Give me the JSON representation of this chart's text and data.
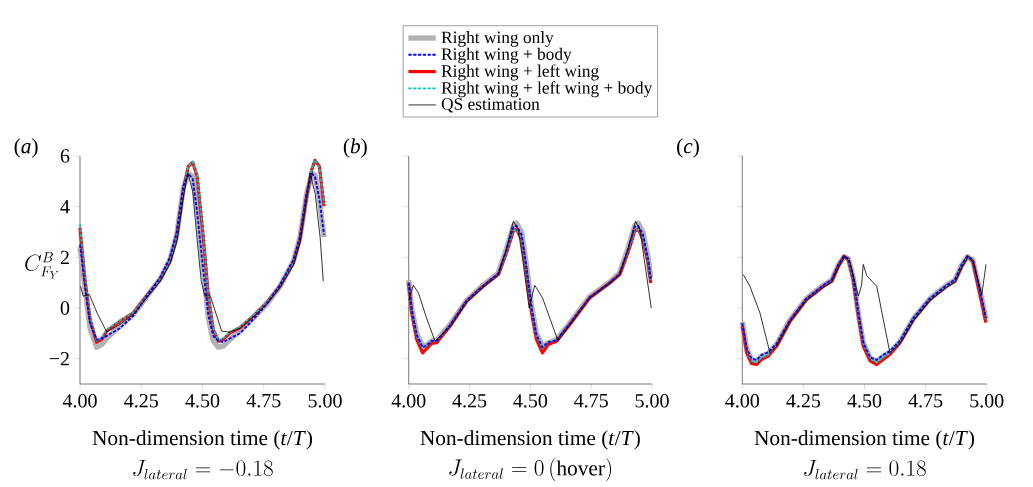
{
  "chart_data": [
    {
      "type": "line",
      "title": "(*a*)",
      "xlabel": "Non-dimension time (*t*/*T*)",
      "ylabel": "C^{B}_{F_Y}",
      "annotations": [
        "J_{lateral} = -0.18"
      ],
      "xlim": [
        4.0,
        5.0
      ],
      "ylim": [
        -3,
        6
      ],
      "xticks": [
        {
          "value": 4.0,
          "label": "4.00"
        },
        {
          "value": 4.25,
          "label": "4.25"
        },
        {
          "value": 4.5,
          "label": "4.50"
        },
        {
          "value": 4.75,
          "label": "4.75"
        },
        {
          "value": 5.0,
          "label": "5.00"
        }
      ],
      "yticks": [
        {
          "value": -2,
          "label": "−2"
        },
        0,
        2,
        4,
        6
      ],
      "x": [
        4.0,
        4.02,
        4.041,
        4.068,
        4.088,
        4.109,
        4.163,
        4.218,
        4.272,
        4.327,
        4.367,
        4.395,
        4.422,
        4.442,
        4.46,
        4.478,
        4.503,
        4.524,
        4.544,
        4.565,
        4.585,
        4.612,
        4.653,
        4.707,
        4.762,
        4.816,
        4.871,
        4.898,
        4.925,
        4.946,
        4.959,
        4.977,
        4.996
      ],
      "series": [
        {
          "color": "#b3b3b3",
          "line_style": "solid",
          "values": [
            2.4,
            0.8,
            -0.8,
            -1.55,
            -1.45,
            -1.2,
            -0.7,
            -0.25,
            0.45,
            1.15,
            1.9,
            2.9,
            4.75,
            5.3,
            5.2,
            4.0,
            1.6,
            -0.4,
            -1.3,
            -1.55,
            -1.5,
            -1.25,
            -0.9,
            -0.4,
            0.15,
            0.85,
            1.85,
            2.8,
            4.5,
            5.3,
            5.25,
            4.3,
            2.8
          ]
        },
        {
          "color": "#0000ff",
          "line_style": "dashed",
          "values": [
            2.5,
            0.9,
            -0.6,
            -1.25,
            -1.2,
            -1.1,
            -0.8,
            -0.3,
            0.45,
            1.2,
            2.0,
            3.0,
            4.8,
            5.3,
            5.1,
            3.8,
            1.5,
            -0.3,
            -1.1,
            -1.3,
            -1.35,
            -1.2,
            -1.0,
            -0.45,
            0.15,
            0.9,
            1.9,
            2.8,
            4.5,
            5.3,
            5.2,
            4.3,
            2.9
          ]
        },
        {
          "color": "#ff0000",
          "line_style": "solid",
          "values": [
            3.16,
            1.12,
            -0.45,
            -1.35,
            -1.24,
            -0.91,
            -0.52,
            -0.19,
            0.47,
            1.12,
            1.85,
            2.83,
            4.67,
            5.59,
            5.75,
            5.2,
            2.83,
            0.47,
            -0.85,
            -1.31,
            -1.24,
            -0.98,
            -0.78,
            -0.32,
            0.21,
            0.86,
            1.79,
            2.71,
            4.41,
            5.46,
            5.83,
            5.59,
            4.02
          ]
        },
        {
          "color": "#00c8c8",
          "line_style": "dashed",
          "values": [
            3.3,
            1.2,
            -0.4,
            -1.3,
            -1.2,
            -0.85,
            -0.5,
            -0.18,
            0.48,
            1.12,
            1.85,
            2.85,
            4.7,
            5.6,
            5.78,
            5.25,
            2.9,
            0.5,
            -0.8,
            -1.28,
            -1.2,
            -0.95,
            -0.75,
            -0.3,
            0.22,
            0.86,
            1.8,
            2.72,
            4.45,
            5.5,
            5.85,
            5.55,
            4.1
          ]
        },
        {
          "color": "#000000",
          "line_style": "solid",
          "x": [
            4.002,
            4.013,
            4.038,
            4.07,
            4.109,
            4.163,
            4.218,
            4.272,
            4.327,
            4.367,
            4.395,
            4.422,
            4.44,
            4.46,
            4.48,
            4.495,
            4.51,
            4.53,
            4.578,
            4.612,
            4.653,
            4.707,
            4.762,
            4.816,
            4.871,
            4.898,
            4.925,
            4.939,
            4.96,
            4.98,
            4.993
          ],
          "values": [
            0.86,
            0.47,
            0.53,
            -0.2,
            -0.95,
            -0.65,
            -0.25,
            0.4,
            1.05,
            1.75,
            2.6,
            4.4,
            5.33,
            4.6,
            2.5,
            1.06,
            0.45,
            0.53,
            -0.91,
            -0.95,
            -0.8,
            -0.35,
            0.15,
            0.8,
            1.7,
            2.6,
            4.3,
            5.33,
            4.5,
            2.8,
            1.06
          ]
        }
      ]
    },
    {
      "type": "line",
      "title": "(*b*)",
      "xlabel": "Non-dimension time (*t*/*T*)",
      "annotations": [
        "J_{lateral} = 0\\,\\mathrm{(hover)}"
      ],
      "xlim": [
        4.0,
        5.0
      ],
      "ylim": [
        -3,
        6
      ],
      "tick_labels": "x",
      "legend": "top",
      "xticks": [
        {
          "value": 4.0,
          "label": "4.00"
        },
        {
          "value": 4.25,
          "label": "4.25"
        },
        {
          "value": 4.5,
          "label": "4.50"
        },
        {
          "value": 4.75,
          "label": "4.75"
        },
        {
          "value": 5.0,
          "label": "5.00"
        }
      ],
      "yticks": [
        {
          "value": -2,
          "label": null
        },
        {
          "value": 0,
          "label": null
        },
        {
          "value": 2,
          "label": null
        },
        {
          "value": 4,
          "label": null
        },
        {
          "value": 6,
          "label": null
        }
      ],
      "x": [
        4.0,
        4.012,
        4.033,
        4.057,
        4.077,
        4.094,
        4.115,
        4.17,
        4.238,
        4.306,
        4.368,
        4.402,
        4.43,
        4.443,
        4.464,
        4.484,
        4.505,
        4.525,
        4.55,
        4.573,
        4.607,
        4.662,
        4.744,
        4.826,
        4.867,
        4.901,
        4.929,
        4.943,
        4.963,
        4.984,
        4.995
      ],
      "series": [
        {
          "name": "Right wing only",
          "color": "#b3b3b3",
          "line_style": "solid",
          "values": [
            1.1,
            0.0,
            -1.0,
            -1.5,
            -1.45,
            -1.3,
            -1.28,
            -0.65,
            0.3,
            0.9,
            1.38,
            2.35,
            3.25,
            3.35,
            3.0,
            1.7,
            0.1,
            -1.0,
            -1.5,
            -1.38,
            -1.25,
            -0.6,
            0.45,
            1.02,
            1.38,
            2.35,
            3.25,
            3.35,
            3.0,
            2.0,
            1.2
          ]
        },
        {
          "name": "Right wing + body",
          "color": "#0000ff",
          "line_style": "dashed",
          "values": [
            1.0,
            -0.05,
            -1.05,
            -1.55,
            -1.45,
            -1.3,
            -1.3,
            -0.68,
            0.28,
            0.88,
            1.35,
            2.3,
            3.2,
            3.25,
            2.9,
            1.6,
            0.0,
            -1.05,
            -1.55,
            -1.35,
            -1.28,
            -0.62,
            0.42,
            1.0,
            1.35,
            2.3,
            3.2,
            3.25,
            2.9,
            1.9,
            1.15
          ]
        },
        {
          "name": "Right wing + left wing",
          "color": "#ff0000",
          "line_style": "solid",
          "values": [
            0.99,
            -0.18,
            -1.24,
            -1.77,
            -1.57,
            -1.4,
            -1.37,
            -0.71,
            0.27,
            0.86,
            1.32,
            2.18,
            3.03,
            3.12,
            2.7,
            1.39,
            -0.19,
            -1.24,
            -1.77,
            -1.44,
            -1.31,
            -0.65,
            0.4,
            0.99,
            1.32,
            2.18,
            3.03,
            3.12,
            2.7,
            1.78,
            0.99
          ]
        },
        {
          "name": "Right wing + left wing + body",
          "color": "#00c8c8",
          "line_style": "dashed",
          "values": [
            0.95,
            -0.1,
            -1.1,
            -1.6,
            -1.45,
            -1.3,
            -1.3,
            -0.68,
            0.28,
            0.86,
            1.32,
            2.2,
            3.05,
            3.1,
            2.75,
            1.5,
            -0.05,
            -1.1,
            -1.6,
            -1.35,
            -1.25,
            -0.62,
            0.4,
            1.0,
            1.32,
            2.2,
            3.05,
            3.1,
            2.75,
            1.85,
            1.1
          ]
        },
        {
          "name": "QS estimation",
          "color": "#000000",
          "line_style": "solid",
          "x": [
            4.0,
            4.019,
            4.04,
            4.07,
            4.108,
            4.17,
            4.238,
            4.306,
            4.368,
            4.4,
            4.43,
            4.45,
            4.47,
            4.495,
            4.518,
            4.55,
            4.614,
            4.662,
            4.744,
            4.826,
            4.867,
            4.9,
            4.932,
            4.95,
            4.97,
            4.997
          ],
          "values": [
            0.3,
            0.9,
            0.6,
            -0.3,
            -1.31,
            -0.75,
            0.22,
            0.82,
            1.3,
            2.3,
            3.42,
            3.1,
            1.8,
            0.0,
            0.9,
            0.4,
            -1.31,
            -0.68,
            0.38,
            0.97,
            1.3,
            2.3,
            3.42,
            3.1,
            1.8,
            0.0
          ]
        }
      ]
    },
    {
      "type": "line",
      "title": "(*c*)",
      "xlabel": "Non-dimension time (*t*/*T*)",
      "annotations": [
        "J_{lateral} = 0.18"
      ],
      "xlim": [
        4.0,
        5.0
      ],
      "ylim": [
        -3,
        6
      ],
      "tick_labels": "x",
      "xticks": [
        {
          "value": 4.0,
          "label": "4.00"
        },
        {
          "value": 4.25,
          "label": "4.25"
        },
        {
          "value": 4.5,
          "label": "4.50"
        },
        {
          "value": 4.75,
          "label": "4.75"
        },
        {
          "value": 5.0,
          "label": "5.00"
        }
      ],
      "yticks": [
        {
          "value": -2,
          "label": null
        },
        {
          "value": 0,
          "label": null
        },
        {
          "value": 2,
          "label": null
        },
        {
          "value": 4,
          "label": null
        },
        {
          "value": 6,
          "label": null
        }
      ],
      "x": [
        4.0,
        4.018,
        4.038,
        4.059,
        4.079,
        4.106,
        4.141,
        4.195,
        4.263,
        4.332,
        4.366,
        4.393,
        4.416,
        4.434,
        4.454,
        4.475,
        4.495,
        4.523,
        4.55,
        4.577,
        4.604,
        4.645,
        4.7,
        4.768,
        4.836,
        4.87,
        4.898,
        4.921,
        4.943,
        4.962,
        4.98,
        4.997
      ],
      "series": [
        {
          "color": "#b3b3b3",
          "line_style": "solid",
          "values": [
            -0.55,
            -1.6,
            -2.05,
            -2.1,
            -1.9,
            -1.8,
            -1.42,
            -0.48,
            0.38,
            0.9,
            1.1,
            1.7,
            2.02,
            1.95,
            1.2,
            -0.22,
            -1.38,
            -1.98,
            -2.1,
            -1.9,
            -1.75,
            -1.32,
            -0.42,
            0.38,
            0.9,
            1.1,
            1.7,
            2.02,
            1.9,
            1.1,
            0.35,
            -0.45
          ]
        },
        {
          "color": "#0000ff",
          "line_style": "dashed",
          "values": [
            -0.6,
            -1.6,
            -2.0,
            -2.05,
            -1.85,
            -1.75,
            -1.4,
            -0.48,
            0.38,
            0.9,
            1.12,
            1.72,
            2.04,
            1.95,
            1.2,
            -0.2,
            -1.35,
            -1.95,
            -2.05,
            -1.85,
            -1.7,
            -1.3,
            -0.4,
            0.38,
            0.9,
            1.12,
            1.72,
            2.04,
            1.9,
            1.1,
            0.35,
            -0.4
          ]
        },
        {
          "color": "#ff0000",
          "line_style": "solid",
          "values": [
            -0.71,
            -1.77,
            -2.19,
            -2.23,
            -2.03,
            -1.9,
            -1.5,
            -0.52,
            0.34,
            0.86,
            1.06,
            1.65,
            2.04,
            1.91,
            1.12,
            -0.32,
            -1.5,
            -2.09,
            -2.23,
            -2.03,
            -1.83,
            -1.37,
            -0.45,
            0.34,
            0.86,
            1.06,
            1.65,
            2.02,
            1.85,
            1.0,
            0.2,
            -0.58
          ]
        },
        {
          "color": "#00c8c8",
          "line_style": "dashed",
          "values": [
            -0.6,
            -1.65,
            -2.1,
            -2.15,
            -1.95,
            -1.85,
            -1.45,
            -0.5,
            0.36,
            0.88,
            1.08,
            1.68,
            2.02,
            1.9,
            1.15,
            -0.25,
            -1.4,
            -2.0,
            -2.15,
            -1.95,
            -1.78,
            -1.33,
            -0.43,
            0.36,
            0.88,
            1.08,
            1.68,
            2.0,
            1.85,
            1.05,
            0.3,
            -0.45
          ]
        },
        {
          "color": "#000000",
          "line_style": "solid",
          "x": [
            4.004,
            4.031,
            4.072,
            4.113,
            4.141,
            4.195,
            4.263,
            4.332,
            4.366,
            4.393,
            4.42,
            4.44,
            4.475,
            4.488,
            4.495,
            4.509,
            4.55,
            4.604,
            4.645,
            4.7,
            4.768,
            4.836,
            4.87,
            4.898,
            4.925,
            4.945,
            4.98,
            4.997
          ],
          "values": [
            1.32,
            0.86,
            -0.19,
            -1.77,
            -1.5,
            -0.55,
            0.3,
            0.82,
            1.02,
            1.6,
            2.04,
            1.8,
            0.47,
            0.9,
            1.72,
            1.28,
            0.86,
            -1.77,
            -1.4,
            -0.5,
            0.3,
            0.82,
            1.02,
            1.6,
            2.04,
            1.8,
            0.53,
            1.72
          ]
        }
      ]
    }
  ]
}
